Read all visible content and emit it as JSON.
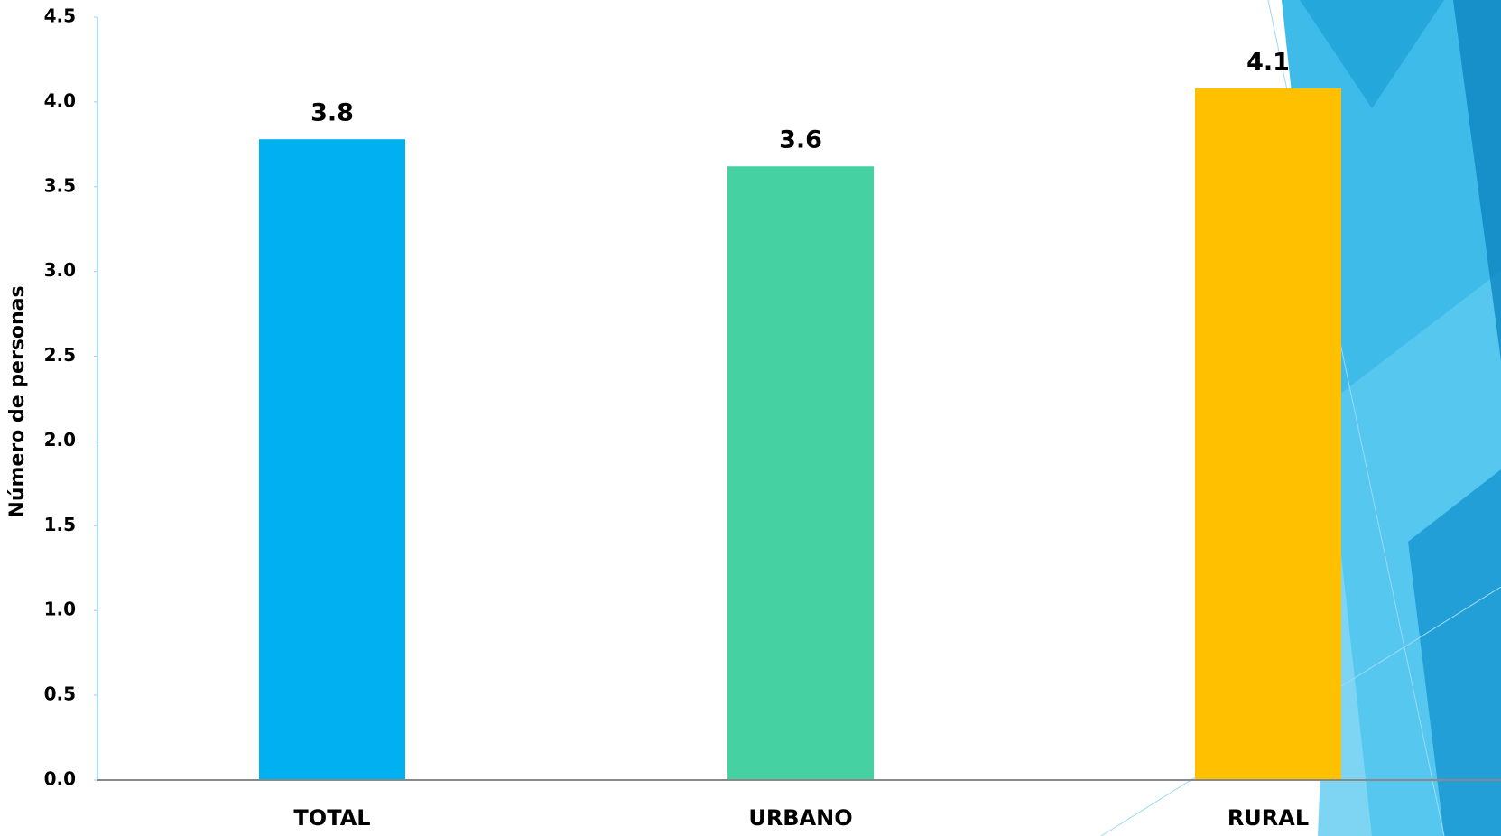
{
  "chart_data": {
    "type": "bar",
    "y_label": "Número de personas",
    "categories": [
      "TOTAL",
      "URBANO",
      "RURAL"
    ],
    "values": [
      3.78,
      3.62,
      4.08
    ],
    "value_labels": [
      "3.8",
      "3.6",
      "4.1"
    ],
    "colors": [
      "#00b0f0",
      "#45d1a2",
      "#ffc000"
    ],
    "ylim": [
      0,
      4.5
    ],
    "yticks": [
      {
        "value": 0,
        "label": "0.0"
      },
      0.5,
      {
        "value": 1,
        "label": "1.0"
      },
      1.5,
      {
        "value": 2,
        "label": "2.0"
      },
      2.5,
      {
        "value": 3,
        "label": "3.0"
      },
      3.5,
      {
        "value": 4,
        "label": "4.0"
      },
      4.5
    ],
    "grid": false
  }
}
